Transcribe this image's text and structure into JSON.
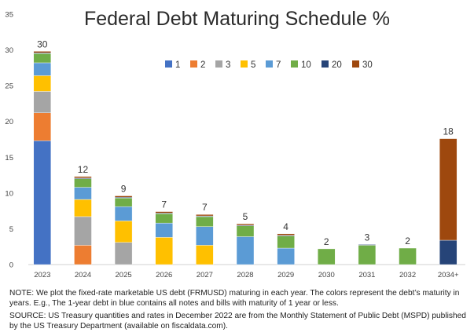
{
  "chart_data": {
    "type": "bar",
    "stacked": true,
    "title": "Federal Debt Maturing Schedule %",
    "categories": [
      "2023",
      "2024",
      "2025",
      "2026",
      "2027",
      "2028",
      "2029",
      "2030",
      "2031",
      "2032",
      "2034+"
    ],
    "ylim": [
      0,
      35
    ],
    "yticks": [
      "0",
      "5",
      "10",
      "15",
      "20",
      "25",
      "30",
      "35"
    ],
    "grid": false,
    "legend_position": "top-center",
    "totals": [
      "30",
      "12",
      "9",
      "7",
      "7",
      "5",
      "4",
      "2",
      "3",
      "2",
      "18"
    ],
    "series": [
      {
        "name": "1",
        "color": "#4472C4",
        "values": [
          17.3,
          0,
          0,
          0,
          0,
          0,
          0,
          0,
          0,
          0,
          0
        ]
      },
      {
        "name": "2",
        "color": "#ED7D31",
        "values": [
          3.9,
          2.7,
          0,
          0,
          0,
          0,
          0,
          0,
          0,
          0,
          0
        ]
      },
      {
        "name": "3",
        "color": "#A5A5A5",
        "values": [
          3.0,
          4.0,
          3.1,
          0,
          0,
          0,
          0,
          0,
          0,
          0,
          0
        ]
      },
      {
        "name": "5",
        "color": "#FFC000",
        "values": [
          2.2,
          2.4,
          3.0,
          3.8,
          2.7,
          0,
          0,
          0,
          0,
          0,
          0
        ]
      },
      {
        "name": "7",
        "color": "#5B9BD5",
        "values": [
          1.8,
          1.7,
          2.0,
          2.0,
          2.6,
          3.9,
          2.3,
          0,
          0,
          0,
          0
        ]
      },
      {
        "name": "10",
        "color": "#70AD47",
        "values": [
          1.3,
          1.2,
          1.2,
          1.3,
          1.4,
          1.5,
          1.7,
          2.2,
          2.7,
          2.3,
          0
        ]
      },
      {
        "name": "20",
        "color": "#264478",
        "values": [
          0.1,
          0.1,
          0.1,
          0.1,
          0.1,
          0.1,
          0.1,
          0,
          0.1,
          0,
          3.4
        ]
      },
      {
        "name": "30",
        "color": "#9E480E",
        "values": [
          0.2,
          0.2,
          0.2,
          0.2,
          0.2,
          0.2,
          0.2,
          0,
          0,
          0,
          14.2
        ]
      }
    ]
  },
  "notes": {
    "note": "NOTE: We plot the fixed-rate marketable US debt (FRMUSD) maturing in each year. The colors represent the debt’s maturity in years. E.g., The 1-year debt in blue contains all notes and bills with maturity of 1 year or less.",
    "source": "SOURCE: US Treasury quantities and rates in December 2022 are from the Monthly Statement of Public Debt (MSPD) published by the US Treasury Department (available on fiscaldata.com)."
  }
}
